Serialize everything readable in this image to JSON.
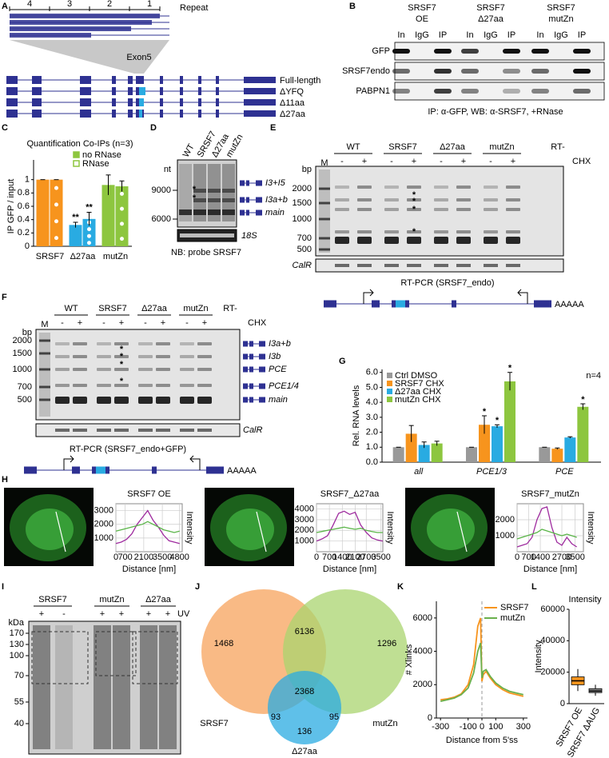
{
  "panels": {
    "A": {
      "letter": "A",
      "repeat_numbers": [
        "4",
        "3",
        "2",
        "1"
      ],
      "repeat_label": "Repeat",
      "exon_label": "Exon5",
      "isoforms": [
        "Full-length",
        "ΔYFQ",
        "Δ11aa",
        "Δ27aa"
      ]
    },
    "B": {
      "letter": "B",
      "groups": [
        [
          "SRSF7",
          "OE"
        ],
        [
          "SRSF7",
          "Δ27aa"
        ],
        [
          "SRSF7",
          "mutZn"
        ]
      ],
      "lanes": [
        "In",
        "IgG",
        "IP"
      ],
      "rows": [
        "GFP",
        "SRSF7endo",
        "PABPN1"
      ],
      "caption": "IP: α-GFP, WB: α-SRSF7, +RNase"
    },
    "C": {
      "letter": "C",
      "chart": {
        "type": "bar",
        "title": "Quantification Co-IPs (n=3)",
        "ylabel": "IP GFP / input",
        "categories": [
          "SRSF7",
          "Δ27aa",
          "mutZn"
        ],
        "category_colors": [
          "#f7941d",
          "#29abe2",
          "#8dc63f"
        ],
        "series": [
          {
            "name": "no RNase",
            "values": [
              1,
              0.32,
              0.92
            ],
            "errors": [
              0,
              0.04,
              0.15
            ],
            "annotations": [
              null,
              "**",
              null
            ]
          },
          {
            "name": "RNase",
            "values": [
              1,
              0.41,
              0.9
            ],
            "errors": [
              0,
              0.1,
              0.08
            ],
            "annotations": [
              null,
              "**",
              null
            ]
          }
        ],
        "ylim": [
          0,
          1.2
        ],
        "yticks": [
          0,
          0.2,
          0.4,
          0.6,
          0.8,
          1
        ]
      }
    },
    "D": {
      "letter": "D",
      "lanes": [
        "WT",
        "SRSF7",
        "Δ27aa",
        "mutZn"
      ],
      "unit": "nt",
      "markers": [
        9000,
        6000
      ],
      "bands": [
        "I3+I5",
        "I3a+b",
        "main"
      ],
      "loading": "18S",
      "caption": "NB: probe SRSF7",
      "band_markers": [
        {
          "symbol": "*",
          "color": "#92278f"
        },
        {
          "symbol": "*",
          "color": "#ed1c24"
        }
      ]
    },
    "E": {
      "letter": "E",
      "marker_lane": "M",
      "groups": [
        "WT",
        "SRSF7",
        "Δ27aa",
        "mutZn",
        "RT-"
      ],
      "treatments": [
        "-",
        "+"
      ],
      "treatment_label": "CHX",
      "unit": "bp",
      "markers": [
        2000,
        1500,
        1000,
        700,
        500
      ],
      "loading": "CalR",
      "caption": "RT-PCR (SRSF7_endo)",
      "polyA": "AAAAA",
      "band_markers": [
        {
          "symbol": "*",
          "color": "#ed1c24"
        },
        {
          "symbol": "*",
          "color": "#39b54a"
        },
        {
          "symbol": "*",
          "color": "#f7941d"
        },
        {
          "symbol": "*",
          "color": "#f9ed32"
        }
      ]
    },
    "F": {
      "letter": "F",
      "marker_lane": "M",
      "groups": [
        "WT",
        "SRSF7",
        "Δ27aa",
        "mutZn",
        "RT-"
      ],
      "treatments": [
        "-",
        "+"
      ],
      "treatment_label": "CHX",
      "unit": "bp",
      "markers": [
        2000,
        1500,
        1000,
        700,
        500
      ],
      "bands": [
        "I3a+b",
        "I3b",
        "PCE",
        "PCE1/4",
        "main"
      ],
      "loading": "CalR",
      "caption": "RT-PCR (SRSF7_endo+GFP)",
      "polyA": "AAAAA",
      "band_markers": [
        {
          "symbol": "*",
          "color": "#ed1c24"
        },
        {
          "symbol": "*",
          "color": "#39b54a"
        },
        {
          "symbol": "*",
          "color": "#f7941d"
        },
        {
          "symbol": "*",
          "color": "#f9ed32"
        }
      ]
    },
    "G": {
      "letter": "G",
      "chart": {
        "type": "bar",
        "ylabel": "Rel. RNA levels",
        "note": "n=4",
        "categories": [
          "all",
          "PCE1/3",
          "PCE"
        ],
        "series": [
          {
            "name": "Ctrl DMSO",
            "color": "#999999",
            "values": [
              1,
              1,
              1
            ],
            "errors": [
              0,
              0,
              0
            ],
            "annotations": [
              null,
              null,
              null
            ]
          },
          {
            "name": "SRSF7 CHX",
            "color": "#f7941d",
            "values": [
              1.9,
              2.5,
              0.9
            ],
            "errors": [
              0.55,
              0.6,
              0.05
            ],
            "annotations": [
              null,
              "*",
              null
            ]
          },
          {
            "name": "Δ27aa CHX",
            "color": "#29abe2",
            "values": [
              1.15,
              2.4,
              1.65
            ],
            "errors": [
              0.2,
              0.1,
              0.05
            ],
            "annotations": [
              null,
              "*",
              null
            ]
          },
          {
            "name": "mutZn CHX",
            "color": "#8dc63f",
            "values": [
              1.25,
              5.4,
              3.7
            ],
            "errors": [
              0.15,
              0.6,
              0.2
            ],
            "annotations": [
              null,
              "*",
              "*"
            ]
          }
        ],
        "ylim": [
          0,
          6.2
        ],
        "yticks": [
          {
            "value": 0,
            "label": "0.0"
          },
          {
            "value": 1,
            "label": "1.0"
          },
          {
            "value": 2,
            "label": "2.0"
          },
          {
            "value": 3,
            "label": "3.0"
          },
          {
            "value": 4,
            "label": "4.0"
          },
          {
            "value": 5,
            "label": "5.0"
          },
          {
            "value": 6,
            "label": "6.0"
          }
        ]
      }
    },
    "H": {
      "letter": "H",
      "plots": [
        {
          "type": "line",
          "title": "SRSF7 OE",
          "xlabel": "Distance [nm]",
          "ylabel": "Intensity",
          "xlim": [
            0,
            5000
          ],
          "ylim": [
            0,
            3500
          ],
          "xticks": [
            0,
            700,
            2100,
            3500,
            4800
          ],
          "yticks": [
            1000,
            2000,
            3000
          ],
          "grid": true,
          "x": [
            0,
            400,
            800,
            1200,
            1600,
            2000,
            2400,
            2800,
            3200,
            3600,
            4000,
            4400,
            4800
          ],
          "series": [
            {
              "color": "#9e2a9e",
              "values": [
                600,
                700,
                900,
                1300,
                2000,
                2500,
                3000,
                2300,
                1800,
                1200,
                800,
                700,
                600
              ]
            },
            {
              "color": "#5ab548",
              "values": [
                1500,
                1600,
                1700,
                1800,
                1900,
                2000,
                2200,
                2000,
                1800,
                1600,
                1500,
                1400,
                1500
              ]
            }
          ]
        },
        {
          "type": "line",
          "title": "SRSF7_Δ27aa",
          "xlabel": "Distance [nm]",
          "ylabel": "Intensity",
          "xlim": [
            0,
            3600
          ],
          "ylim": [
            0,
            4500
          ],
          "xticks": [
            0,
            700,
            1400,
            2100,
            2700,
            3500
          ],
          "yticks": [
            1000,
            2000,
            3000,
            4000
          ],
          "grid": true,
          "x": [
            0,
            300,
            600,
            900,
            1200,
            1500,
            1800,
            2100,
            2400,
            2700,
            3000,
            3300,
            3600
          ],
          "series": [
            {
              "color": "#9e2a9e",
              "values": [
                1000,
                1200,
                1500,
                2500,
                3600,
                3800,
                3500,
                3700,
                2500,
                1800,
                1300,
                1100,
                1000
              ]
            },
            {
              "color": "#5ab548",
              "values": [
                1800,
                1900,
                2000,
                2100,
                2200,
                2300,
                2200,
                2100,
                2200,
                2000,
                1900,
                1800,
                1800
              ]
            }
          ]
        },
        {
          "type": "line",
          "title": "SRSF7_mutZn",
          "xlabel": "Distance [nm]",
          "ylabel": "Intensity",
          "xlim": [
            0,
            4000
          ],
          "ylim": [
            0,
            3000
          ],
          "xticks": [
            0,
            700,
            1400,
            2700,
            3500
          ],
          "yticks": [
            1000,
            2000
          ],
          "grid": true,
          "x": [
            0,
            300,
            600,
            900,
            1200,
            1500,
            1800,
            2100,
            2400,
            2700,
            3000,
            3300,
            3600
          ],
          "series": [
            {
              "color": "#9e2a9e",
              "values": [
                300,
                400,
                500,
                900,
                2000,
                2700,
                2800,
                1500,
                600,
                400,
                900,
                500,
                300
              ]
            },
            {
              "color": "#5ab548",
              "values": [
                800,
                900,
                1000,
                1100,
                1200,
                1400,
                1300,
                1200,
                1100,
                1000,
                1100,
                1000,
                900
              ]
            }
          ]
        }
      ]
    },
    "I": {
      "letter": "I",
      "groups": [
        "SRSF7",
        "mutZn",
        "Δ27aa"
      ],
      "uv": [
        "+",
        "-",
        "+",
        "+",
        "+",
        "+"
      ],
      "uv_label": "UV",
      "unit": "kDa",
      "markers": [
        170,
        130,
        100,
        70,
        55,
        40
      ]
    },
    "J": {
      "letter": "J",
      "chart": {
        "type": "venn",
        "sets": [
          {
            "name": "SRSF7",
            "color": "#f7a35c"
          },
          {
            "name": "mutZn",
            "color": "#a9d46f"
          },
          {
            "name": "Δ27aa",
            "color": "#29abe2"
          }
        ],
        "counts": [
          1468,
          6136,
          1296,
          2368,
          93,
          95,
          136
        ]
      }
    },
    "K": {
      "letter": "K",
      "chart": {
        "type": "line",
        "xlabel": "Distance from 5'ss",
        "ylabel": "# Xlinks",
        "xlim": [
          -330,
          330
        ],
        "ylim": [
          0,
          7000
        ],
        "xticks": [
          -300,
          -100,
          0,
          100,
          300
        ],
        "yticks": [
          0,
          2000,
          4000,
          6000
        ],
        "x": [
          -300,
          -250,
          -200,
          -150,
          -100,
          -60,
          -30,
          -10,
          0,
          10,
          30,
          60,
          100,
          150,
          200,
          250,
          300
        ],
        "series": [
          {
            "name": "SRSF7",
            "color": "#f7941d",
            "values": [
              1100,
              1150,
              1250,
              1450,
              2000,
              3200,
              5500,
              6000,
              2200,
              2600,
              2800,
              2400,
              2000,
              1700,
              1500,
              1400,
              1300
            ]
          },
          {
            "name": "mutZn",
            "color": "#6ab04c",
            "values": [
              1000,
              1100,
              1200,
              1400,
              1800,
              2700,
              4000,
              4500,
              2400,
              2800,
              2900,
              2500,
              2100,
              1800,
              1600,
              1500,
              1400
            ]
          }
        ]
      }
    },
    "L": {
      "letter": "L",
      "chart": {
        "type": "box",
        "title": "Intensity",
        "ylabel": "Intensity",
        "categories": [
          "SRSF7 OE",
          "SRSF7 ΔAUG"
        ],
        "colors": [
          "#f7941d",
          "#888888"
        ],
        "ylim": [
          0,
          60000
        ],
        "yticks": [
          0,
          20000,
          40000,
          60000
        ],
        "boxes": [
          {
            "whislo": 8000,
            "q1": 12000,
            "med": 14500,
            "q3": 17000,
            "whishi": 22000
          },
          {
            "whislo": 5000,
            "q1": 7000,
            "med": 8000,
            "q3": 9500,
            "whishi": 12000
          }
        ]
      }
    }
  }
}
